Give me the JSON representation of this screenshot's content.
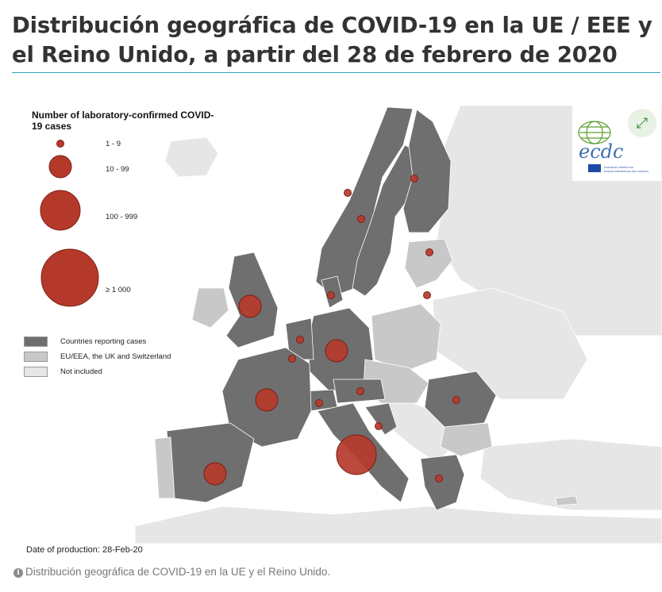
{
  "page": {
    "title": "Distribución geográfica de COVID-19 en la UE / EEE y el Reino Unido, a partir del 28 de febrero de 2020",
    "caption": "Distribución geográfica de COVID-19 en la UE y el Reino Unido."
  },
  "map": {
    "date_of_production": "Date of production: 28-Feb-20",
    "colors": {
      "reporting": "#6f6f6f",
      "eu_eea": "#c8c8c8",
      "not_included": "#e6e6e6",
      "sea": "#ffffff",
      "bubble": "#b5392b",
      "bubble_stroke": "#7a1f14",
      "accent_rule": "#2aa9bc"
    },
    "legend": {
      "size_title": "Number of laboratory-confirmed COVID-19 cases",
      "sizes": [
        {
          "label": "1 - 9"
        },
        {
          "label": "10 - 99"
        },
        {
          "label": "100 - 999"
        },
        {
          "label": "≥ 1 000"
        }
      ],
      "categories": [
        {
          "label": "Countries reporting cases"
        },
        {
          "label": "EU/EEA, the UK and Switzerland"
        },
        {
          "label": "Not included"
        }
      ]
    },
    "logo": {
      "name": "ecdc-logo",
      "text": "ecdc",
      "subtext": "EUROPEAN CENTRE FOR DISEASE PREVENTION AND CONTROL"
    },
    "expand_icon": "expand-icon",
    "info_icon": "info-icon"
  }
}
